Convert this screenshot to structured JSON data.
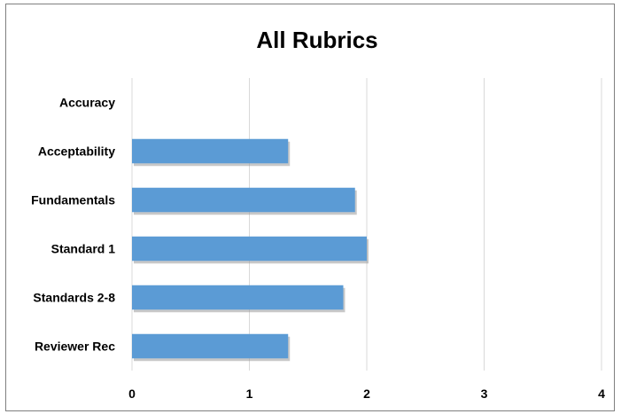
{
  "chart_data": {
    "type": "bar",
    "orientation": "horizontal",
    "title": "All Rubrics",
    "categories": [
      "Accuracy",
      "Acceptability",
      "Fundamentals",
      "Standard 1",
      "Standards 2-8",
      "Reviewer Rec"
    ],
    "values": [
      0,
      1.33,
      1.9,
      2.0,
      1.8,
      1.33
    ],
    "xlim": [
      0,
      4
    ],
    "xticks": [
      "0",
      "1",
      "2",
      "3",
      "4"
    ],
    "grid": true,
    "legend": "none",
    "bar_color": "#5b9bd5"
  }
}
